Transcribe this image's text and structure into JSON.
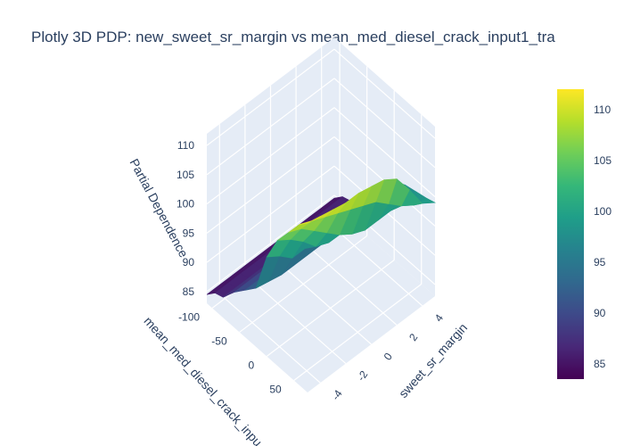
{
  "chart_data": {
    "type": "surface",
    "title": "Plotly 3D PDP: new_sweet_sr_margin vs mean_med_diesel_crack_input1_tra",
    "x_axis": {
      "label": "new_sweet_sr_margin",
      "visible_label": "sweet_sr_margin",
      "ticks": [
        "-4",
        "-2",
        "0",
        "2",
        "4"
      ],
      "range": [
        -5,
        5
      ]
    },
    "y_axis": {
      "label": "mean_med_diesel_crack_input1_tra",
      "visible_label": "mean_med_diesel_crack_inpu",
      "ticks": [
        "-100",
        "-50",
        "0",
        "50"
      ],
      "range": [
        -110,
        75
      ]
    },
    "z_axis": {
      "label": "Partial Dependence",
      "ticks": [
        "85",
        "90",
        "95",
        "100",
        "105",
        "110"
      ],
      "range": [
        83,
        112
      ]
    },
    "x": [
      -5,
      -4,
      -3,
      -2,
      -1,
      0,
      1,
      2,
      3,
      4,
      5
    ],
    "y": [
      -110,
      -95,
      -80,
      -60,
      -40,
      -20,
      0,
      20,
      40,
      60,
      75
    ],
    "z": [
      [
        84.5,
        84.5,
        84.5,
        84.5,
        84.5,
        84.5,
        84.5,
        84.5,
        84.5,
        84.5,
        84.5
      ],
      [
        86.0,
        86.0,
        86.0,
        86.0,
        86.0,
        86.0,
        86.0,
        86.0,
        86.0,
        86.0,
        86.0
      ],
      [
        86.5,
        86.5,
        86.5,
        86.5,
        86.5,
        86.5,
        86.5,
        86.5,
        86.5,
        86.5,
        86.5
      ],
      [
        89.0,
        89.0,
        89.0,
        89.0,
        89.0,
        89.0,
        89.0,
        89.0,
        89.0,
        89.0,
        89.0
      ],
      [
        91.0,
        91.0,
        90.5,
        90.5,
        90.5,
        90.5,
        90.5,
        90.5,
        90.5,
        90.5,
        90.5
      ],
      [
        93.0,
        92.5,
        92.0,
        92.0,
        92.0,
        92.0,
        92.0,
        92.0,
        92.0,
        92.0,
        92.0
      ],
      [
        100.0,
        98.5,
        96.5,
        96.5,
        96.5,
        96.5,
        96.5,
        96.5,
        96.5,
        96.5,
        96.5
      ],
      [
        104.5,
        103.0,
        101.0,
        98.5,
        97.5,
        97.5,
        97.5,
        97.5,
        97.5,
        97.5,
        97.5
      ],
      [
        107.5,
        106.5,
        104.5,
        102.5,
        100.5,
        99.0,
        98.0,
        98.0,
        98.0,
        98.0,
        98.0
      ],
      [
        110.5,
        109.5,
        108.5,
        107.5,
        106.5,
        105.5,
        104.5,
        102.5,
        100.5,
        99.0,
        98.5
      ],
      [
        112.0,
        111.5,
        111.0,
        110.5,
        110.5,
        110.0,
        109.5,
        108.0,
        104.5,
        100.5,
        99.0
      ]
    ],
    "colorscale": "Viridis",
    "colorscale_stops": [
      "#440154",
      "#482878",
      "#3e4989",
      "#31688e",
      "#26828e",
      "#1f9e89",
      "#35b779",
      "#6ece58",
      "#b5de2b",
      "#fde725"
    ],
    "colorbar": {
      "ticks": [
        "85",
        "90",
        "95",
        "100",
        "105",
        "110"
      ],
      "range": [
        83.5,
        112
      ]
    },
    "scene_background": "#e5ecf6",
    "grid_color": "#ffffff"
  }
}
